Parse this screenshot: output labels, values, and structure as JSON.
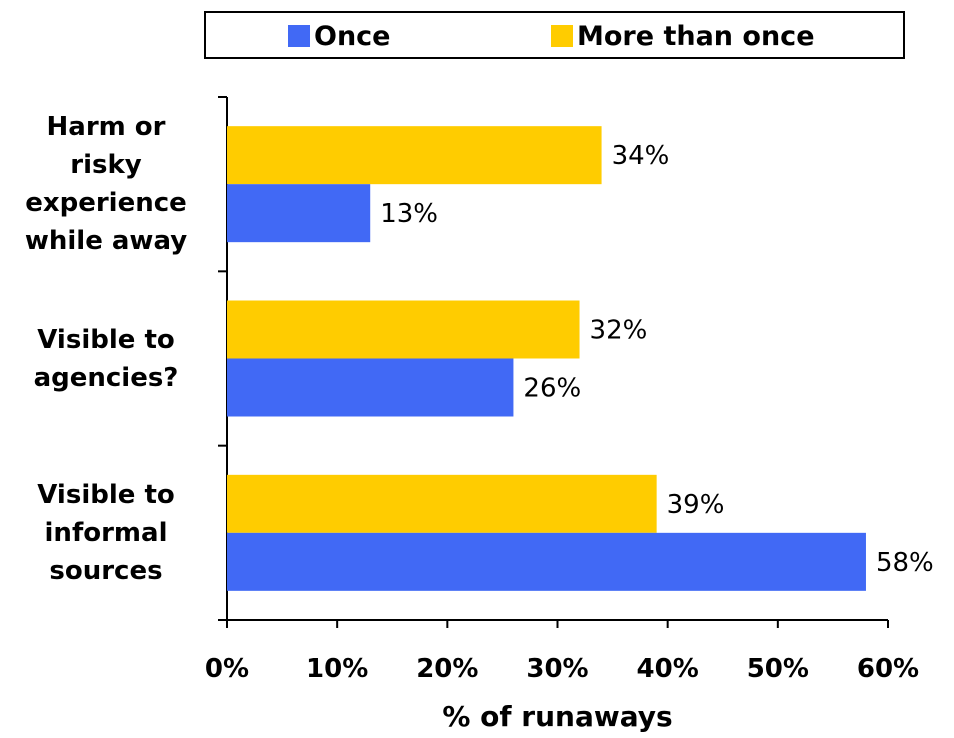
{
  "chart_data": {
    "type": "bar",
    "orientation": "horizontal",
    "categories": [
      "Harm or risky experience while away",
      "Visible to agencies?",
      "Visible to informal sources"
    ],
    "category_lines": [
      [
        "Harm or",
        "risky",
        "experience",
        "while away"
      ],
      [
        "Visible to",
        "agencies?"
      ],
      [
        "Visible to",
        "informal",
        "sources"
      ]
    ],
    "series": [
      {
        "name": "Once",
        "values": [
          13,
          26,
          58
        ],
        "color": "#4169f5"
      },
      {
        "name": "More than once",
        "values": [
          34,
          32,
          39
        ],
        "color": "#ffcc00"
      }
    ],
    "data_labels": {
      "Once": [
        "13%",
        "26%",
        "58%"
      ],
      "More than once": [
        "34%",
        "32%",
        "39%"
      ]
    },
    "xlabel": "% of runaways",
    "ylabel": "",
    "xlim": [
      0,
      60
    ],
    "xticks": [
      "0%",
      "10%",
      "20%",
      "30%",
      "40%",
      "50%",
      "60%"
    ],
    "legend": {
      "placement": "top",
      "entries": [
        "Once",
        "More than once"
      ]
    },
    "grid": false
  }
}
